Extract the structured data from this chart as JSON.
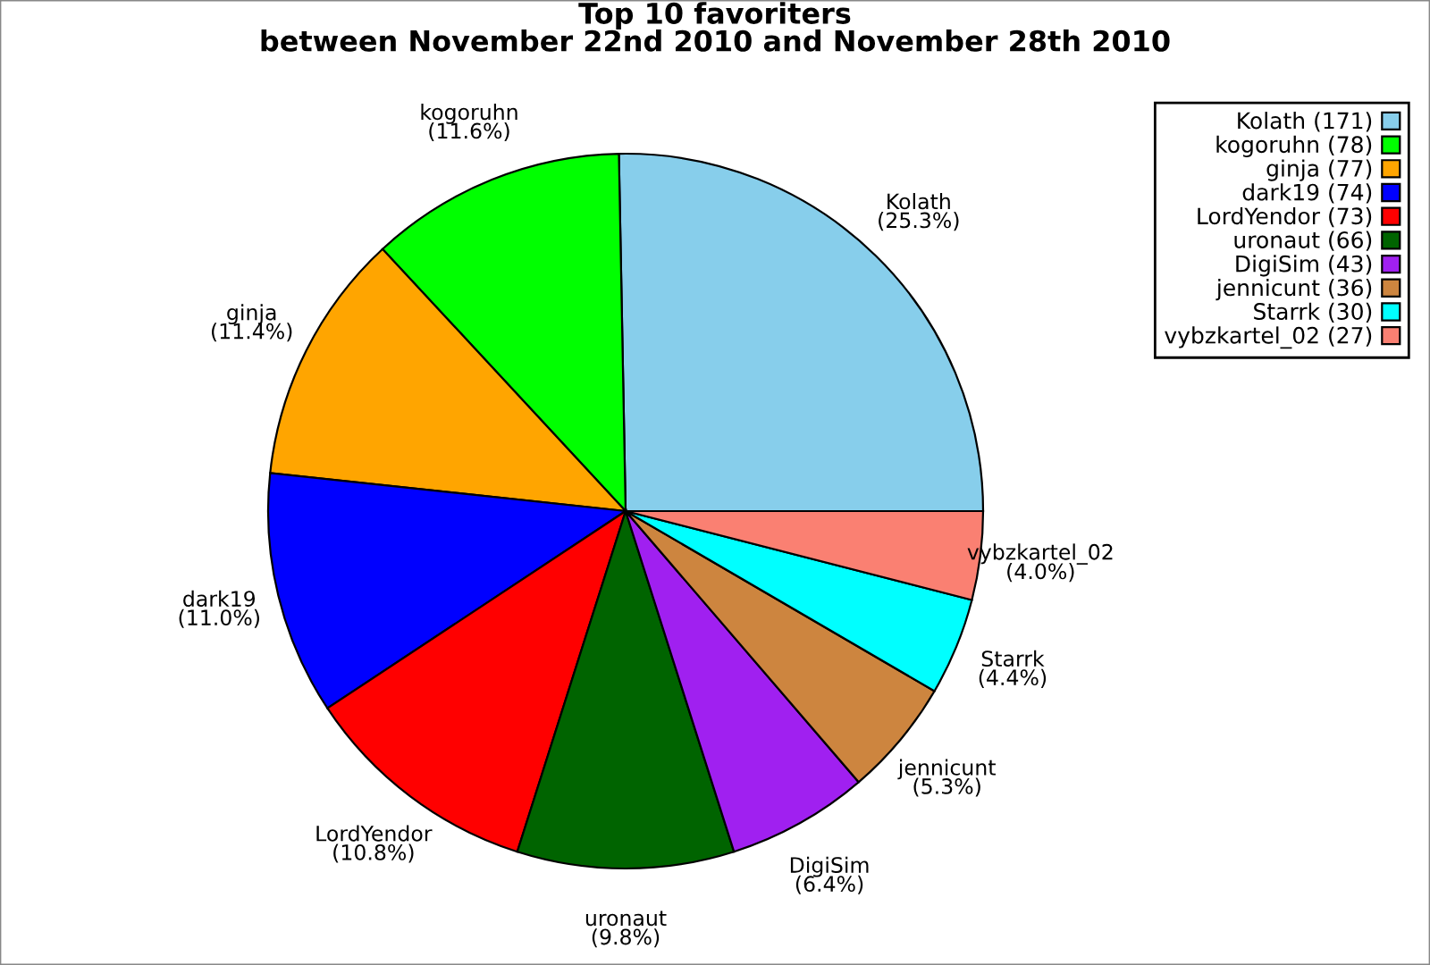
{
  "chart_data": {
    "type": "pie",
    "title": "Top 10 favoriters\nbetween November 22nd 2010 and November 28th 2010",
    "categories": [
      "Kolath (171)",
      "kogoruhn (78)",
      "ginja (77)",
      "dark19 (74)",
      "LordYendor (73)",
      "uronaut (66)",
      "DigiSim (43)",
      "jennicunt (36)",
      "Starrk (30)",
      "vybzkartel_02 (27)"
    ],
    "values": [
      25.3,
      11.6,
      11.4,
      11.0,
      10.8,
      9.8,
      6.4,
      5.3,
      4.4,
      4.0
    ],
    "value_labels": [
      "Kolath\n(25.3%)",
      "kogoruhn\n(11.6%)",
      "ginja\n(11.4%)",
      "dark19\n(11.0%)",
      "LordYendor\n(10.8%)",
      "uronaut\n(9.8%)",
      "DigiSim\n(6.4%)",
      "jennicunt\n(5.3%)",
      "Starrk\n(4.4%)",
      "vybzkartel_02\n(4.0%)"
    ],
    "colors": [
      "#87ceeb",
      "#00ff00",
      "#ffa500",
      "#0000ff",
      "#ff0000",
      "#006400",
      "#a020f0",
      "#cd853f",
      "#00ffff",
      "#fa8072"
    ],
    "legend": "top right"
  }
}
